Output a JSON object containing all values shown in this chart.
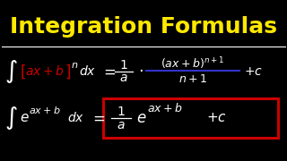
{
  "background_color": "#000000",
  "title": "Integration Formulas",
  "title_color": "#FFE800",
  "title_fontsize": 18,
  "separator_color": "#FFFFFF",
  "formula_color": "#FFFFFF",
  "bracket_color": "#CC0000",
  "underline_color": "#3333CC",
  "box_color": "#CC0000"
}
